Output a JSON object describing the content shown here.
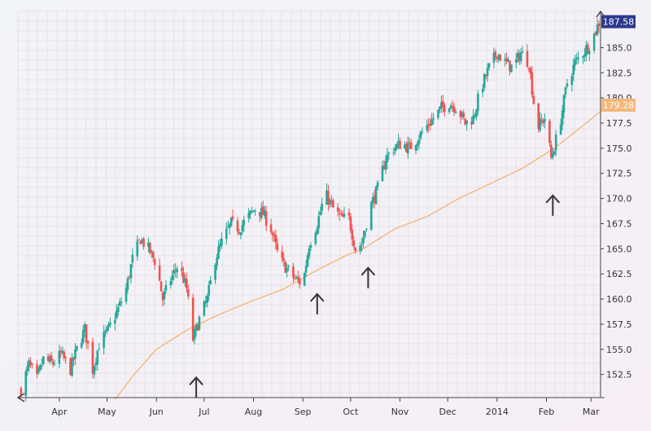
{
  "chart_data": {
    "type": "candlestick",
    "title": "",
    "xlabel": "",
    "ylabel": "",
    "x_tick_labels": [
      "Apr",
      "May",
      "Jun",
      "Jul",
      "Aug",
      "Sep",
      "Oct",
      "Nov",
      "Dec",
      "2014",
      "Feb",
      "Mar"
    ],
    "y_tick_labels": [
      "152.5",
      "155.0",
      "157.5",
      "160.0",
      "162.5",
      "165.0",
      "167.5",
      "170.0",
      "172.5",
      "175.0",
      "177.5",
      "180.0",
      "182.5",
      "185.0"
    ],
    "y_ticks": [
      152.5,
      155.0,
      157.5,
      160.0,
      162.5,
      165.0,
      167.5,
      170.0,
      172.5,
      175.0,
      177.5,
      180.0,
      182.5,
      185.0
    ],
    "ylim": [
      150.2,
      188.6
    ],
    "last_price_label": "187.58",
    "moving_average_label": "179.28",
    "grid": true,
    "colors": {
      "up": "#26a69a",
      "down": "#ef5350",
      "moving_average": "#f5b77a",
      "price_tag_bg": "#2b3a8c",
      "ma_tag_bg": "#f5b77a",
      "arrow": "#333333"
    },
    "series": [
      {
        "type": "candlestick",
        "close_path": [
          [
            "2013-03-08",
            151.0
          ],
          [
            "2013-03-13",
            153.5
          ],
          [
            "2013-03-18",
            152.0
          ],
          [
            "2013-03-22",
            154.0
          ],
          [
            "2013-03-28",
            153.6
          ],
          [
            "2013-04-02",
            154.5
          ],
          [
            "2013-04-08",
            153.0
          ],
          [
            "2013-04-12",
            155.0
          ],
          [
            "2013-04-17",
            157.0
          ],
          [
            "2013-04-22",
            153.0
          ],
          [
            "2013-04-26",
            155.5
          ],
          [
            "2013-05-02",
            157.0
          ],
          [
            "2013-05-08",
            159.0
          ],
          [
            "2013-05-13",
            161.0
          ],
          [
            "2013-05-17",
            164.0
          ],
          [
            "2013-05-22",
            166.0
          ],
          [
            "2013-05-27",
            165.0
          ],
          [
            "2013-06-01",
            163.5
          ],
          [
            "2013-06-05",
            160.0
          ],
          [
            "2013-06-10",
            162.0
          ],
          [
            "2013-06-15",
            163.5
          ],
          [
            "2013-06-20",
            161.0
          ],
          [
            "2013-06-24",
            156.0
          ],
          [
            "2013-06-28",
            158.0
          ],
          [
            "2013-07-03",
            160.0
          ],
          [
            "2013-07-08",
            164.0
          ],
          [
            "2013-07-13",
            166.0
          ],
          [
            "2013-07-18",
            167.5
          ],
          [
            "2013-07-23",
            167.0
          ],
          [
            "2013-07-28",
            168.0
          ],
          [
            "2013-08-02",
            169.0
          ],
          [
            "2013-08-07",
            168.5
          ],
          [
            "2013-08-12",
            167.0
          ],
          [
            "2013-08-17",
            164.0
          ],
          [
            "2013-08-22",
            163.0
          ],
          [
            "2013-08-27",
            162.0
          ],
          [
            "2013-09-01",
            161.5
          ],
          [
            "2013-09-05",
            165.5
          ],
          [
            "2013-09-10",
            167.5
          ],
          [
            "2013-09-15",
            170.5
          ],
          [
            "2013-09-20",
            169.0
          ],
          [
            "2013-09-25",
            168.0
          ],
          [
            "2013-09-30",
            168.0
          ],
          [
            "2013-10-04",
            165.0
          ],
          [
            "2013-10-08",
            165.5
          ],
          [
            "2013-10-13",
            169.0
          ],
          [
            "2013-10-18",
            171.0
          ],
          [
            "2013-10-23",
            174.0
          ],
          [
            "2013-10-28",
            175.0
          ],
          [
            "2013-11-02",
            175.5
          ],
          [
            "2013-11-07",
            175.0
          ],
          [
            "2013-11-12",
            176.0
          ],
          [
            "2013-11-17",
            177.0
          ],
          [
            "2013-11-22",
            178.0
          ],
          [
            "2013-11-27",
            179.0
          ],
          [
            "2013-12-02",
            179.5
          ],
          [
            "2013-12-07",
            179.0
          ],
          [
            "2013-12-12",
            177.5
          ],
          [
            "2013-12-17",
            178.0
          ],
          [
            "2013-12-22",
            181.0
          ],
          [
            "2013-12-27",
            183.0
          ],
          [
            "2014-01-01",
            184.5
          ],
          [
            "2014-01-06",
            183.5
          ],
          [
            "2014-01-11",
            183.0
          ],
          [
            "2014-01-16",
            184.5
          ],
          [
            "2014-01-21",
            183.5
          ],
          [
            "2014-01-26",
            177.0
          ],
          [
            "2014-01-31",
            178.0
          ],
          [
            "2014-02-04",
            174.0
          ],
          [
            "2014-02-09",
            177.0
          ],
          [
            "2014-02-14",
            181.5
          ],
          [
            "2014-02-19",
            183.5
          ],
          [
            "2014-02-24",
            184.5
          ],
          [
            "2014-03-01",
            185.5
          ],
          [
            "2014-03-06",
            187.5
          ]
        ]
      },
      {
        "type": "line",
        "ma_path": [
          [
            "2013-05-06",
            150.0
          ],
          [
            "2013-05-18",
            152.5
          ],
          [
            "2013-06-01",
            155.0
          ],
          [
            "2013-06-21",
            157.0
          ],
          [
            "2013-07-11",
            158.5
          ],
          [
            "2013-07-31",
            159.8
          ],
          [
            "2013-08-20",
            161.0
          ],
          [
            "2013-09-09",
            162.8
          ],
          [
            "2013-09-29",
            164.4
          ],
          [
            "2013-10-09",
            165.0
          ],
          [
            "2013-10-29",
            167.0
          ],
          [
            "2013-11-18",
            168.2
          ],
          [
            "2013-12-08",
            170.0
          ],
          [
            "2013-12-28",
            171.5
          ],
          [
            "2014-01-17",
            173.0
          ],
          [
            "2014-02-06",
            175.0
          ],
          [
            "2014-02-26",
            177.5
          ],
          [
            "2014-03-08",
            178.8
          ]
        ]
      }
    ]
  }
}
